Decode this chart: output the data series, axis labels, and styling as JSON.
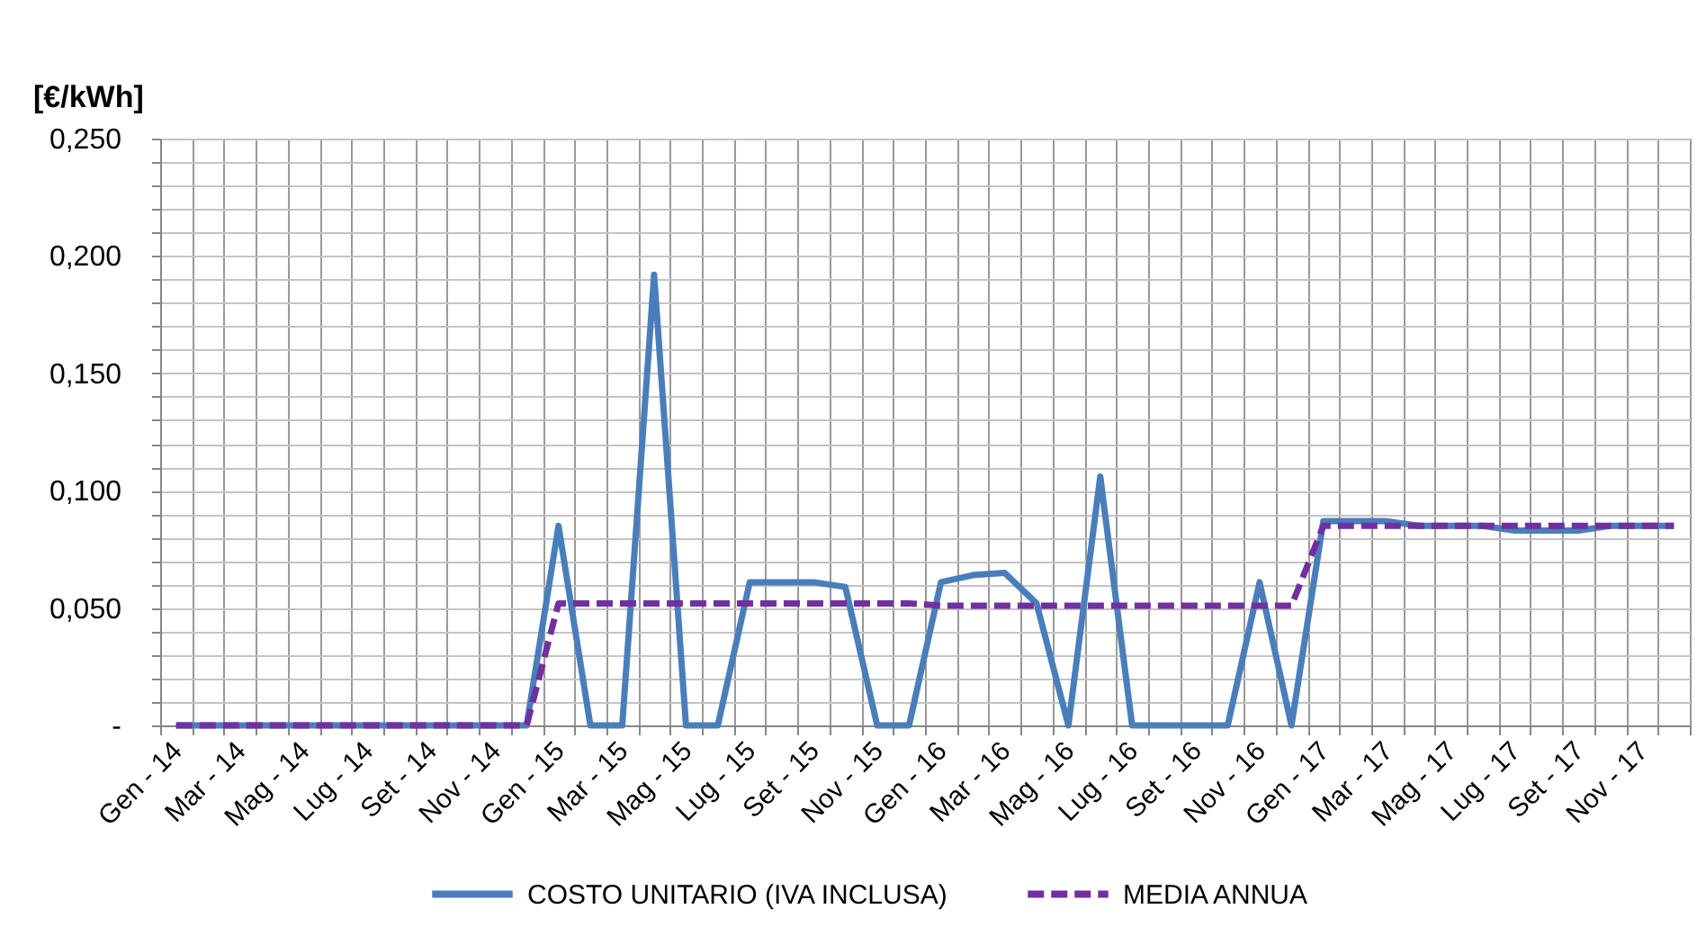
{
  "chart_data": {
    "type": "line",
    "ylabel": "[€/kWh]",
    "categories": [
      "Gen - 14",
      null,
      "Mar - 14",
      null,
      "Mag - 14",
      null,
      "Lug - 14",
      null,
      "Set - 14",
      null,
      "Nov - 14",
      null,
      "Gen - 15",
      null,
      "Mar - 15",
      null,
      "Mag - 15",
      null,
      "Lug - 15",
      null,
      "Set - 15",
      null,
      "Nov - 15",
      null,
      "Gen - 16",
      null,
      "Mar - 16",
      null,
      "Mag - 16",
      null,
      "Lug - 16",
      null,
      "Set - 16",
      null,
      "Nov - 16",
      null,
      "Gen - 17",
      null,
      "Mar - 17",
      null,
      "Mag - 17",
      null,
      "Lug - 17",
      null,
      "Set - 17",
      null,
      "Nov - 17",
      null
    ],
    "series": [
      {
        "name": "COSTO UNITARIO (IVA INCLUSA)",
        "color": "#4a7ebb",
        "line_style": "solid",
        "values": [
          0,
          0,
          0,
          0,
          0,
          0,
          0,
          0,
          0,
          0,
          0,
          0,
          0.085,
          0,
          0,
          0.192,
          0,
          0,
          0.061,
          0.061,
          0.061,
          0.059,
          0,
          0,
          0.061,
          0.064,
          0.065,
          0.052,
          0,
          0.106,
          0,
          0,
          0,
          0,
          0.061,
          0,
          0.087,
          0.087,
          0.087,
          0.085,
          0.085,
          0.085,
          0.083,
          0.083,
          0.083,
          0.085,
          0.085,
          0.085
        ]
      },
      {
        "name": "MEDIA ANNUA",
        "color": "#7030a0",
        "line_style": "dashed",
        "values": [
          0,
          0,
          0,
          0,
          0,
          0,
          0,
          0,
          0,
          0,
          0,
          0,
          0.052,
          0.052,
          0.052,
          0.052,
          0.052,
          0.052,
          0.052,
          0.052,
          0.052,
          0.052,
          0.052,
          0.052,
          0.051,
          0.051,
          0.051,
          0.051,
          0.051,
          0.051,
          0.051,
          0.051,
          0.051,
          0.051,
          0.051,
          0.051,
          0.085,
          0.085,
          0.085,
          0.085,
          0.085,
          0.085,
          0.085,
          0.085,
          0.085,
          0.085,
          0.085,
          0.085
        ]
      }
    ],
    "ylim": [
      0,
      0.25
    ],
    "yticks": [
      {
        "value": 0,
        "label": "-"
      },
      {
        "value": 0.01,
        "label": null
      },
      {
        "value": 0.02,
        "label": null
      },
      {
        "value": 0.03,
        "label": null
      },
      {
        "value": 0.04,
        "label": null
      },
      {
        "value": 0.05,
        "label": "0,050"
      },
      {
        "value": 0.06,
        "label": null
      },
      {
        "value": 0.07,
        "label": null
      },
      {
        "value": 0.08,
        "label": null
      },
      {
        "value": 0.09,
        "label": null
      },
      {
        "value": 0.1,
        "label": "0,100"
      },
      {
        "value": 0.11,
        "label": null
      },
      {
        "value": 0.12,
        "label": null
      },
      {
        "value": 0.13,
        "label": null
      },
      {
        "value": 0.14,
        "label": null
      },
      {
        "value": 0.15,
        "label": "0,150"
      },
      {
        "value": 0.16,
        "label": null
      },
      {
        "value": 0.17,
        "label": null
      },
      {
        "value": 0.18,
        "label": null
      },
      {
        "value": 0.19,
        "label": null
      },
      {
        "value": 0.2,
        "label": "0,200"
      },
      {
        "value": 0.21,
        "label": null
      },
      {
        "value": 0.22,
        "label": null
      },
      {
        "value": 0.23,
        "label": null
      },
      {
        "value": 0.24,
        "label": null
      },
      {
        "value": 0.25,
        "label": "0,250"
      }
    ],
    "grid": true,
    "legend": "bottom"
  }
}
